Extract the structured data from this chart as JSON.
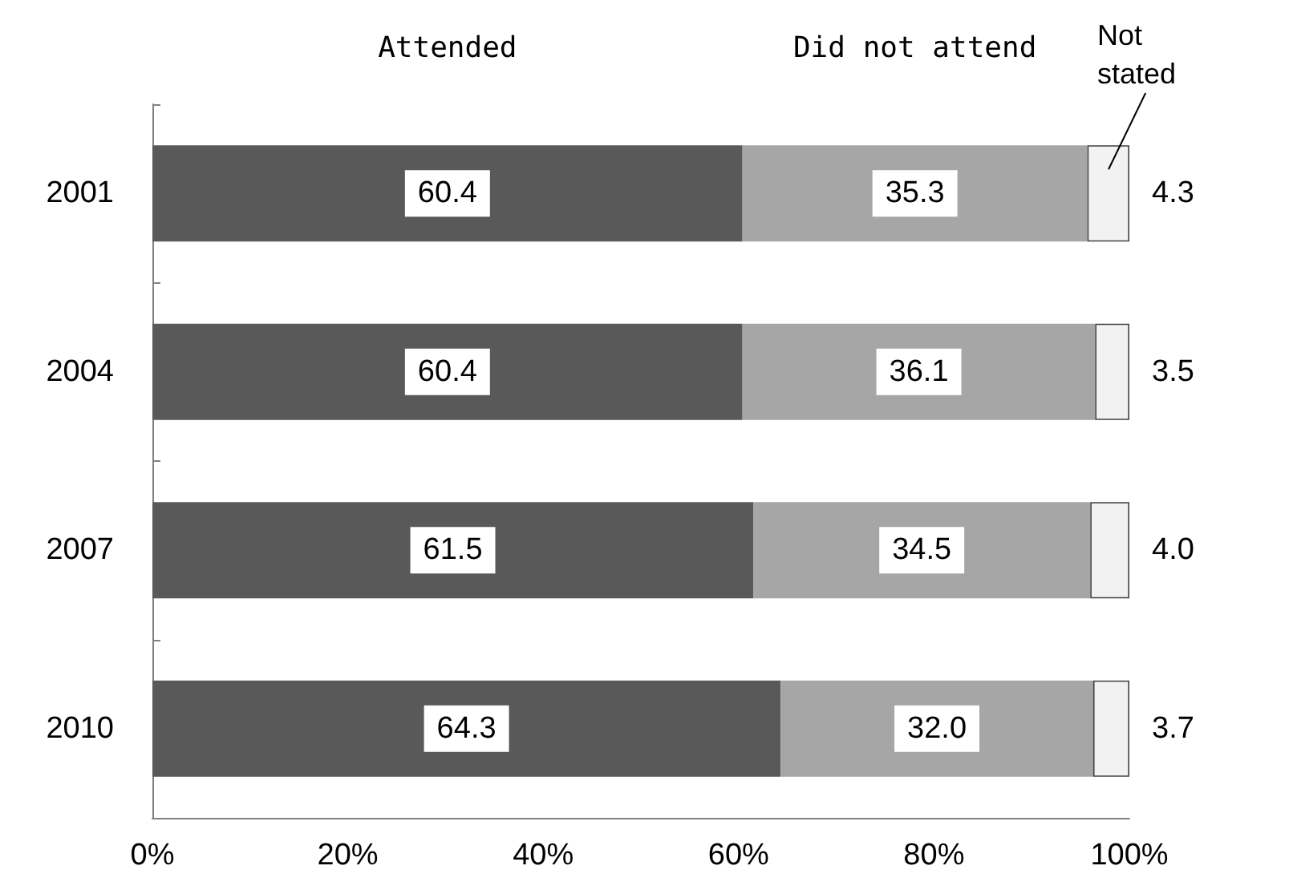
{
  "chart_data": {
    "type": "bar",
    "orientation": "horizontal",
    "stacked": true,
    "categories": [
      "2001",
      "2004",
      "2007",
      "2010"
    ],
    "series": [
      {
        "name": "Attended",
        "color": "#595959",
        "values": [
          60.4,
          60.4,
          61.5,
          64.3
        ],
        "value_labels": [
          "60.4",
          "60.4",
          "61.5",
          "64.3"
        ]
      },
      {
        "name": "Did not attend",
        "color": "#a6a6a6",
        "values": [
          35.3,
          36.1,
          34.5,
          32.0
        ],
        "value_labels": [
          "35.3",
          "36.1",
          "34.5",
          "32.0"
        ]
      },
      {
        "name": "Not stated",
        "color": "#f2f2f2",
        "values": [
          4.3,
          3.5,
          4.0,
          3.7
        ],
        "value_labels": [
          "4.3",
          "3.5",
          "4.0",
          "3.7"
        ]
      }
    ],
    "xlim": [
      0,
      100
    ],
    "xticks": [
      {
        "value": 0,
        "label": "0%"
      },
      {
        "value": 20,
        "label": "20%"
      },
      {
        "value": 40,
        "label": "40%"
      },
      {
        "value": 60,
        "label": "60%"
      },
      {
        "value": 80,
        "label": "80%"
      },
      {
        "value": 100,
        "label": "100%"
      }
    ],
    "grid": false,
    "legend": false
  }
}
